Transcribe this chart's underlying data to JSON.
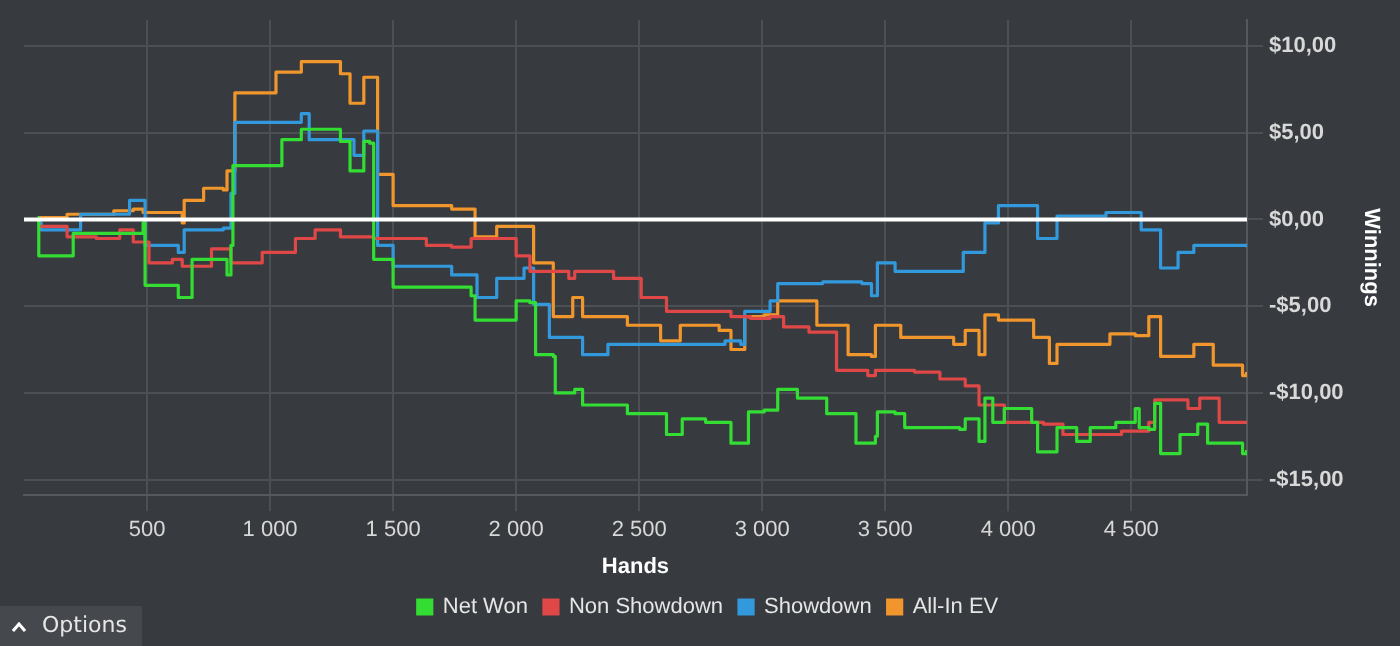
{
  "chart_data": {
    "type": "step",
    "xlabel": "Hands",
    "ylabel": "Winnings",
    "xlim": [
      0,
      4970
    ],
    "ylim": [
      -15.9,
      11.5
    ],
    "xticks": [
      {
        "value": 500,
        "label": "500"
      },
      {
        "value": 1000,
        "label": "1 000"
      },
      {
        "value": 1500,
        "label": "1 500"
      },
      {
        "value": 2000,
        "label": "2 000"
      },
      {
        "value": 2500,
        "label": "2 500"
      },
      {
        "value": 3000,
        "label": "3 000"
      },
      {
        "value": 3500,
        "label": "3 500"
      },
      {
        "value": 4000,
        "label": "4 000"
      },
      {
        "value": 4500,
        "label": "4 500"
      }
    ],
    "yticks": [
      {
        "value": 10,
        "label": "$10,00"
      },
      {
        "value": 5,
        "label": "$5,00"
      },
      {
        "value": 0,
        "label": "$0,00"
      },
      {
        "value": -5,
        "label": "-$5,00"
      },
      {
        "value": -10,
        "label": "-$10,00"
      },
      {
        "value": -15,
        "label": "-$15,00"
      }
    ],
    "grid": true,
    "legend": "bottom",
    "marker": "none",
    "line_style": "solid",
    "ref_lines": [
      {
        "axis": "y",
        "value": 0,
        "color": "#ffffff"
      }
    ],
    "annotations": [
      "Options"
    ],
    "series": [
      {
        "name": "Net Won",
        "color": "#33dd33",
        "x": [
          55,
          60,
          200,
          444,
          484,
          492,
          627,
          683,
          810,
          825,
          841,
          849,
          1048,
          1127,
          1286,
          1325,
          1365,
          1381,
          1405,
          1421,
          1500,
          1817,
          1833,
          2000,
          2056,
          2079,
          2151,
          2159,
          2238,
          2270,
          2452,
          2611,
          2675,
          2770,
          2873,
          2929,
          2944,
          3008,
          3063,
          3143,
          3262,
          3381,
          3460,
          3468,
          3540,
          3579,
          3802,
          3825,
          3881,
          3905,
          3937,
          3984,
          4095,
          4119,
          4198,
          4278,
          4333,
          4437,
          4516,
          4532,
          4571,
          4595,
          4619,
          4690,
          4698,
          4770,
          4810,
          4952,
          4968
        ],
        "values": [
          0.1,
          -2.1,
          -0.8,
          -0.8,
          -0.2,
          -3.8,
          -4.5,
          -2.3,
          -2.3,
          -3.2,
          -1.5,
          3.1,
          4.6,
          5.2,
          4.5,
          2.8,
          2.8,
          4.5,
          4.4,
          -2.3,
          -3.9,
          -4.4,
          -5.8,
          -4.7,
          -4.8,
          -7.8,
          -7.9,
          -10.0,
          -9.8,
          -10.7,
          -11.2,
          -12.4,
          -11.5,
          -11.7,
          -12.9,
          -12.9,
          -11.1,
          -11.0,
          -9.8,
          -10.3,
          -11.2,
          -12.9,
          -12.5,
          -11.1,
          -11.2,
          -12.0,
          -12.1,
          -11.5,
          -12.8,
          -10.3,
          -11.7,
          -10.9,
          -11.7,
          -13.4,
          -12.0,
          -12.8,
          -12.0,
          -11.7,
          -10.9,
          -12.0,
          -12.1,
          -10.6,
          -13.5,
          -13.5,
          -12.4,
          -11.8,
          -12.9,
          -13.5,
          -13.3
        ]
      },
      {
        "name": "Non Showdown",
        "color": "#e04848",
        "x": [
          65,
          175,
          294,
          389,
          444,
          508,
          603,
          643,
          762,
          841,
          968,
          1103,
          1183,
          1286,
          1421,
          1635,
          1738,
          1817,
          2000,
          2056,
          2214,
          2238,
          2396,
          2508,
          2611,
          2873,
          2952,
          3032,
          3087,
          3190,
          3302,
          3429,
          3460,
          3619,
          3722,
          3825,
          3881,
          3984,
          4143,
          4222,
          4460,
          4571,
          4595,
          4730,
          4778,
          4857,
          4968
        ],
        "values": [
          -0.4,
          -1.0,
          -1.1,
          -0.6,
          -1.3,
          -2.5,
          -2.3,
          -2.7,
          -1.7,
          -2.5,
          -1.9,
          -1.1,
          -0.6,
          -1.0,
          -1.1,
          -1.5,
          -1.6,
          -1.1,
          -2.1,
          -3.0,
          -3.4,
          -3.0,
          -3.4,
          -4.5,
          -5.3,
          -5.6,
          -5.7,
          -5.6,
          -6.2,
          -6.5,
          -8.7,
          -9.0,
          -8.7,
          -8.8,
          -9.2,
          -9.6,
          -10.7,
          -11.7,
          -11.8,
          -12.4,
          -12.2,
          -11.7,
          -10.4,
          -10.9,
          -10.3,
          -11.7,
          -11.8
        ]
      },
      {
        "name": "Showdown",
        "color": "#3399dd",
        "x": [
          56,
          70,
          230,
          429,
          484,
          492,
          627,
          651,
          810,
          841,
          857,
          1127,
          1159,
          1317,
          1341,
          1381,
          1413,
          1437,
          1500,
          1738,
          1841,
          1921,
          2032,
          2071,
          2135,
          2270,
          2373,
          2667,
          2849,
          2913,
          2929,
          3032,
          3063,
          3246,
          3405,
          3444,
          3468,
          3540,
          3817,
          3905,
          3960,
          4119,
          4198,
          4397,
          4540,
          4619,
          4690,
          4754,
          4968
        ],
        "values": [
          -0.2,
          -0.6,
          0.3,
          1.1,
          1.1,
          -1.5,
          -1.9,
          -0.6,
          -0.5,
          1.5,
          5.6,
          6.1,
          4.6,
          4.6,
          3.7,
          5.1,
          5.1,
          -1.5,
          -2.7,
          -3.2,
          -4.5,
          -3.4,
          -2.8,
          -4.9,
          -6.8,
          -7.8,
          -7.2,
          -7.2,
          -7.0,
          -7.2,
          -5.3,
          -4.7,
          -3.7,
          -3.6,
          -3.7,
          -4.4,
          -2.5,
          -3.0,
          -1.9,
          -0.2,
          0.8,
          -1.1,
          0.2,
          0.4,
          -0.6,
          -2.8,
          -1.9,
          -1.5,
          -1.6
        ]
      },
      {
        "name": "All-In EV",
        "color": "#f0962d",
        "x": [
          60,
          175,
          365,
          444,
          484,
          643,
          651,
          730,
          810,
          825,
          857,
          1024,
          1127,
          1286,
          1325,
          1381,
          1413,
          1437,
          1500,
          1738,
          1833,
          1921,
          2032,
          2071,
          2151,
          2230,
          2270,
          2452,
          2587,
          2667,
          2825,
          2873,
          2929,
          3008,
          3063,
          3222,
          3349,
          3444,
          3460,
          3563,
          3778,
          3825,
          3881,
          3905,
          3960,
          4103,
          4167,
          4198,
          4413,
          4516,
          4571,
          4619,
          4754,
          4833,
          4952,
          4968
        ],
        "values": [
          0.1,
          0.3,
          0.5,
          0.6,
          0.4,
          -0.2,
          1.1,
          1.8,
          1.7,
          2.8,
          7.3,
          8.5,
          9.1,
          8.4,
          6.7,
          8.2,
          8.2,
          2.6,
          0.8,
          0.6,
          -1.0,
          -0.4,
          -0.4,
          -2.5,
          -5.6,
          -4.5,
          -5.6,
          -6.1,
          -7.0,
          -6.1,
          -6.4,
          -7.5,
          -5.6,
          -5.5,
          -4.7,
          -6.1,
          -7.8,
          -7.9,
          -6.1,
          -6.8,
          -7.2,
          -6.4,
          -7.8,
          -5.5,
          -5.8,
          -6.8,
          -8.3,
          -7.2,
          -6.6,
          -6.7,
          -5.6,
          -7.9,
          -7.2,
          -8.4,
          -9.0,
          -8.8
        ]
      }
    ]
  }
}
